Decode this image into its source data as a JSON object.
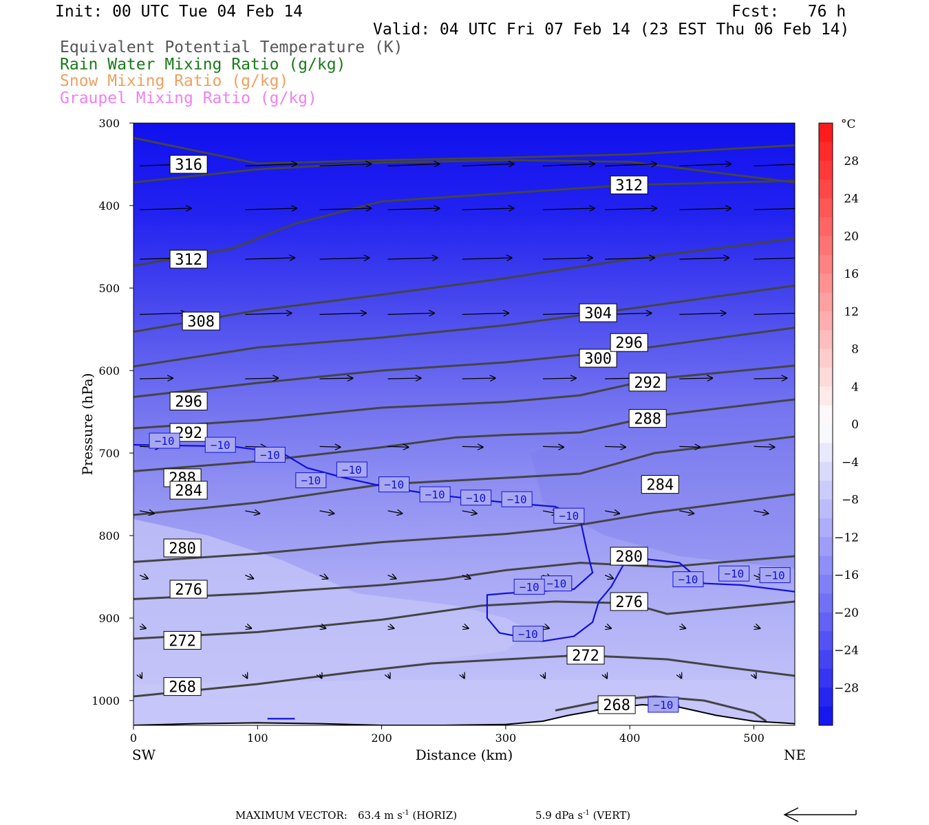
{
  "header": {
    "init": "Init: 00 UTC Tue 04 Feb 14",
    "fcst": "Fcst:   76 h",
    "valid": "Valid: 04 UTC Fri 07 Feb 14 (23 EST Thu 06 Feb 14)"
  },
  "legend_lines": [
    {
      "text": "Equivalent Potential Temperature (K)",
      "color": "#555555"
    },
    {
      "text": "Rain Water Mixing Ratio (g/kg)",
      "color": "#1a7a1a"
    },
    {
      "text": "Snow Mixing Ratio (g/kg)",
      "color": "#f0a060"
    },
    {
      "text": "Graupel Mixing Ratio (g/kg)",
      "color": "#f080f0"
    }
  ],
  "footer": {
    "max_vector_label": "MAXIMUM VECTOR:",
    "horiz": "63.4 m s",
    "horiz_exp": "-1",
    "horiz_unit": " (HORIZ)",
    "vert": "5.9 dPa s",
    "vert_exp": "-1",
    "vert_unit": " (VERT)"
  },
  "colors": {
    "theta_e": "#444444",
    "isotherm": "#1010e0",
    "arrow": "#000000"
  },
  "chart_data": {
    "type": "cross-section",
    "title": "",
    "xlabel": "Distance (km)",
    "ylabel": "Pressure (hPa)",
    "xlim": [
      0,
      533
    ],
    "ylim": [
      300,
      1030
    ],
    "x_ticks": [
      0,
      100,
      200,
      300,
      400,
      500
    ],
    "y_ticks": [
      300,
      400,
      500,
      600,
      700,
      800,
      900,
      1000
    ],
    "x_end_labels": {
      "left": "SW",
      "right": "NE"
    },
    "colorbar": {
      "unit": "°C",
      "tick_labels": [
        "28",
        "24",
        "20",
        "16",
        "12",
        "8",
        "4",
        "0",
        "−4",
        "−8",
        "−12",
        "−16",
        "−20",
        "−24",
        "−28"
      ],
      "tick_values": [
        28,
        24,
        20,
        16,
        12,
        8,
        4,
        0,
        -4,
        -8,
        -12,
        -16,
        -20,
        -24,
        -28
      ],
      "range": [
        -32,
        32
      ],
      "step": 2
    },
    "theta_e_lines": [
      {
        "label": "316",
        "points": [
          [
            0,
            318
          ],
          [
            100,
            349
          ],
          [
            200,
            345
          ],
          [
            300,
            342
          ],
          [
            400,
            338
          ],
          [
            533,
            327
          ]
        ]
      },
      {
        "label": "312",
        "points": [
          [
            0,
            372
          ],
          [
            100,
            356
          ],
          [
            200,
            348
          ],
          [
            300,
            345
          ],
          [
            400,
            347
          ],
          [
            533,
            372
          ]
        ]
      },
      {
        "label": "312",
        "points": [
          [
            0,
            473
          ],
          [
            80,
            452
          ],
          [
            130,
            422
          ],
          [
            200,
            395
          ],
          [
            300,
            385
          ],
          [
            400,
            375
          ],
          [
            533,
            370
          ]
        ]
      },
      {
        "label": "308",
        "points": [
          [
            0,
            553
          ],
          [
            100,
            527
          ],
          [
            200,
            508
          ],
          [
            300,
            488
          ],
          [
            400,
            465
          ],
          [
            533,
            440
          ]
        ]
      },
      {
        "label": "304",
        "points": [
          [
            0,
            595
          ],
          [
            100,
            572
          ],
          [
            200,
            560
          ],
          [
            300,
            545
          ],
          [
            400,
            525
          ],
          [
            533,
            497
          ]
        ]
      },
      {
        "label": "300",
        "points": [
          [
            0,
            632
          ],
          [
            100,
            615
          ],
          [
            200,
            600
          ],
          [
            300,
            590
          ],
          [
            400,
            575
          ],
          [
            533,
            548
          ]
        ]
      },
      {
        "label": "296",
        "points": [
          [
            0,
            670
          ],
          [
            100,
            660
          ],
          [
            200,
            645
          ],
          [
            300,
            638
          ],
          [
            360,
            630
          ],
          [
            420,
            610
          ],
          [
            533,
            594
          ]
        ]
      },
      {
        "label": "292",
        "points": [
          [
            0,
            722
          ],
          [
            100,
            710
          ],
          [
            200,
            693
          ],
          [
            260,
            681
          ],
          [
            300,
            678
          ],
          [
            360,
            675
          ],
          [
            420,
            655
          ],
          [
            533,
            635
          ]
        ]
      },
      {
        "label": "288",
        "points": [
          [
            0,
            775
          ],
          [
            100,
            760
          ],
          [
            200,
            738
          ],
          [
            300,
            730
          ],
          [
            360,
            725
          ],
          [
            420,
            700
          ],
          [
            533,
            680
          ]
        ]
      },
      {
        "label": "284",
        "points": [
          [
            0,
            832
          ],
          [
            100,
            822
          ],
          [
            200,
            808
          ],
          [
            300,
            798
          ],
          [
            340,
            792
          ],
          [
            420,
            772
          ],
          [
            533,
            750
          ]
        ]
      },
      {
        "label": "280",
        "points": [
          [
            0,
            877
          ],
          [
            100,
            870
          ],
          [
            200,
            860
          ],
          [
            250,
            853
          ],
          [
            300,
            842
          ],
          [
            360,
            833
          ],
          [
            430,
            838
          ],
          [
            533,
            825
          ]
        ]
      },
      {
        "label": "276",
        "points": [
          [
            0,
            925
          ],
          [
            100,
            917
          ],
          [
            200,
            902
          ],
          [
            280,
            885
          ],
          [
            340,
            880
          ],
          [
            400,
            882
          ],
          [
            430,
            895
          ],
          [
            533,
            880
          ]
        ]
      },
      {
        "label": "272",
        "points": [
          [
            0,
            995
          ],
          [
            100,
            980
          ],
          [
            180,
            965
          ],
          [
            240,
            955
          ],
          [
            300,
            950
          ],
          [
            360,
            945
          ],
          [
            430,
            950
          ],
          [
            480,
            960
          ],
          [
            533,
            970
          ]
        ]
      },
      {
        "label": "268",
        "points": [
          [
            340,
            1012
          ],
          [
            380,
            1000
          ],
          [
            420,
            995
          ],
          [
            460,
            1000
          ],
          [
            500,
            1015
          ],
          [
            510,
            1025
          ]
        ]
      }
    ],
    "isotherm_neg10": {
      "label": "−10",
      "segments": [
        [
          [
            0,
            690
          ],
          [
            80,
            692
          ],
          [
            120,
            700
          ],
          [
            140,
            718
          ],
          [
            170,
            730
          ],
          [
            200,
            740
          ],
          [
            240,
            750
          ],
          [
            300,
            760
          ],
          [
            340,
            765
          ],
          [
            360,
            780
          ],
          [
            365,
            815
          ],
          [
            370,
            845
          ],
          [
            355,
            865
          ],
          [
            300,
            870
          ],
          [
            285,
            872
          ],
          [
            285,
            900
          ],
          [
            295,
            918
          ],
          [
            330,
            928
          ],
          [
            355,
            922
          ],
          [
            370,
            905
          ],
          [
            375,
            880
          ],
          [
            385,
            862
          ],
          [
            395,
            835
          ],
          [
            410,
            828
          ],
          [
            440,
            833
          ],
          [
            460,
            858
          ],
          [
            490,
            860
          ],
          [
            533,
            868
          ]
        ],
        [
          [
            108,
            1022
          ],
          [
            130,
            1022
          ]
        ],
        [
          [
            405,
            1008
          ],
          [
            440,
            1006
          ]
        ]
      ],
      "label_positions": [
        [
          25,
          685
        ],
        [
          70,
          690
        ],
        [
          110,
          702
        ],
        [
          143,
          733
        ],
        [
          176,
          720
        ],
        [
          210,
          738
        ],
        [
          243,
          750
        ],
        [
          276,
          754
        ],
        [
          309,
          756
        ],
        [
          351,
          776
        ],
        [
          341,
          858
        ],
        [
          319,
          862
        ],
        [
          318,
          919
        ],
        [
          447,
          853
        ],
        [
          484,
          846
        ],
        [
          517,
          848
        ],
        [
          427,
          1005
        ]
      ]
    },
    "wind_vectors": {
      "note": "horizontal-dominant arrows, decreasing in magnitude toward the surface",
      "rows": [
        {
          "p": 352,
          "x": [
            5,
            90,
            150,
            205,
            265,
            330,
            380,
            440,
            500
          ],
          "len": 50,
          "dp": -3
        },
        {
          "p": 405,
          "x": [
            5,
            90,
            150,
            205,
            265,
            330,
            380,
            440,
            500
          ],
          "len": 50,
          "dp": -2
        },
        {
          "p": 465,
          "x": [
            5,
            90,
            150,
            205,
            265,
            330,
            380,
            440,
            500
          ],
          "len": 48,
          "dp": -2
        },
        {
          "p": 532,
          "x": [
            5,
            90,
            150,
            205,
            265,
            330,
            380,
            440,
            500
          ],
          "len": 45,
          "dp": -2
        },
        {
          "p": 610,
          "x": [
            5,
            90,
            150,
            205,
            265,
            330,
            380,
            440,
            500
          ],
          "len": 32,
          "dp": -1
        },
        {
          "p": 692,
          "x": [
            5,
            90,
            150,
            205,
            265,
            330,
            380,
            440,
            500
          ],
          "len": 20,
          "dp": 1
        },
        {
          "p": 770,
          "x": [
            5,
            90,
            150,
            205,
            265,
            330,
            380,
            440,
            500
          ],
          "len": 14,
          "dp": 4
        },
        {
          "p": 848,
          "x": [
            5,
            90,
            150,
            205,
            265,
            330,
            380,
            440,
            500
          ],
          "len": 8,
          "dp": 5
        },
        {
          "p": 910,
          "x": [
            5,
            90,
            150,
            205,
            265,
            330,
            380,
            440,
            500
          ],
          "len": 6,
          "dp": 3
        },
        {
          "p": 968,
          "x": [
            5,
            90,
            150,
            205,
            265,
            330,
            380,
            440,
            500
          ],
          "len": 2,
          "dp": 6
        }
      ]
    },
    "terrain_surface": [
      [
        0,
        1030
      ],
      [
        50,
        1028
      ],
      [
        100,
        1027
      ],
      [
        150,
        1028
      ],
      [
        200,
        1030
      ],
      [
        250,
        1030
      ],
      [
        300,
        1029
      ],
      [
        330,
        1025
      ],
      [
        350,
        1018
      ],
      [
        380,
        1010
      ],
      [
        410,
        1005
      ],
      [
        440,
        1008
      ],
      [
        470,
        1018
      ],
      [
        500,
        1025
      ],
      [
        533,
        1028
      ]
    ]
  }
}
